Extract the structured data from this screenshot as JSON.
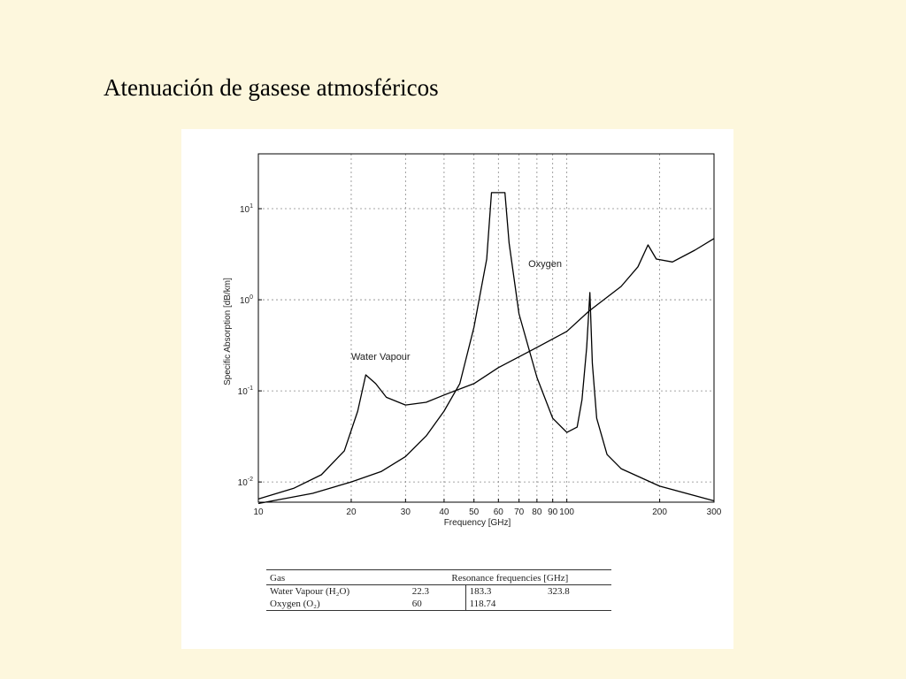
{
  "slide": {
    "title": "Atenuación de gasese atmosféricos"
  },
  "colors": {
    "background": "#fdf7dd",
    "figure_background": "#ffffff",
    "line": "#000000",
    "grid": "#888888"
  },
  "chart_data": {
    "type": "line",
    "title": "",
    "xlabel": "Frequency [GHz]",
    "ylabel": "Specific Absorption [dB/km]",
    "xscale": "log",
    "yscale": "log",
    "xlim": [
      10,
      300
    ],
    "ylim": [
      0.006,
      40
    ],
    "grid": true,
    "x_ticks": [
      10,
      20,
      30,
      40,
      50,
      60,
      70,
      80,
      90,
      100,
      200,
      300
    ],
    "x_tick_labels": [
      "10",
      "20",
      "30",
      "40",
      "50",
      "60",
      "70",
      "80",
      "90",
      "100",
      "200",
      "300"
    ],
    "y_ticks": [
      0.01,
      0.1,
      1,
      10
    ],
    "y_tick_labels": [
      {
        "base": "10",
        "exp": "-2"
      },
      {
        "base": "10",
        "exp": "-1"
      },
      {
        "base": "10",
        "exp": "0"
      },
      {
        "base": "10",
        "exp": "1"
      }
    ],
    "annotations": [
      {
        "text": "Water Vapour",
        "x": 20,
        "y": 0.22
      },
      {
        "text": "Oxygen",
        "x": 75,
        "y": 2.3
      }
    ],
    "series": [
      {
        "name": "Water Vapour",
        "x": [
          10,
          13,
          16,
          19,
          21,
          22.3,
          24,
          26,
          30,
          35,
          40,
          50,
          60,
          80,
          100,
          118,
          150,
          170,
          183.3,
          195,
          220,
          260,
          300
        ],
        "y": [
          0.0065,
          0.0085,
          0.012,
          0.022,
          0.06,
          0.15,
          0.12,
          0.085,
          0.07,
          0.075,
          0.09,
          0.12,
          0.18,
          0.3,
          0.45,
          0.75,
          1.4,
          2.3,
          4,
          2.8,
          2.6,
          3.5,
          4.7
        ]
      },
      {
        "name": "Oxygen",
        "x": [
          10,
          15,
          20,
          25,
          30,
          35,
          40,
          45,
          50,
          55,
          57,
          60,
          63,
          65,
          70,
          80,
          90,
          100,
          108,
          112,
          116,
          118.74,
          121,
          125,
          135,
          150,
          200,
          300
        ],
        "y": [
          0.0058,
          0.0075,
          0.01,
          0.013,
          0.019,
          0.032,
          0.06,
          0.12,
          0.5,
          2.8,
          15,
          15,
          15,
          4.2,
          0.7,
          0.14,
          0.05,
          0.035,
          0.04,
          0.08,
          0.3,
          1.2,
          0.2,
          0.05,
          0.02,
          0.014,
          0.009,
          0.0062
        ]
      }
    ]
  },
  "table": {
    "header": {
      "gas": "Gas",
      "resonance": "Resonance frequencies [GHz]"
    },
    "rows": [
      {
        "gas": "Water Vapour (H₂O)",
        "f1": "22.3",
        "f2": "183.3",
        "f3": "323.8"
      },
      {
        "gas": "Oxygen (O₂)",
        "f1": "60",
        "f2": "118.74",
        "f3": ""
      }
    ]
  }
}
